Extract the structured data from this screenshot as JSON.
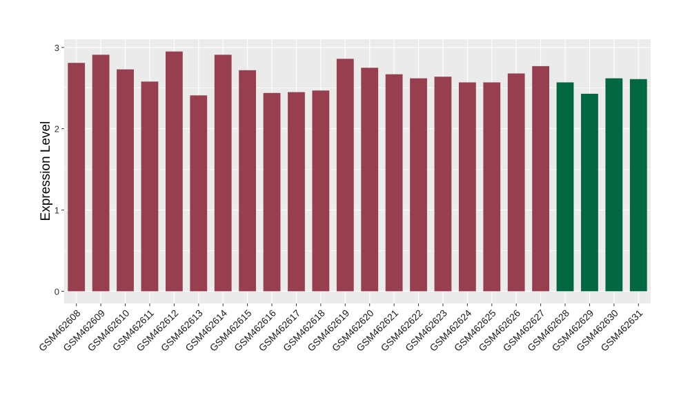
{
  "chart_data": {
    "type": "bar",
    "y_label": "Expression Level",
    "categories": [
      "GSM462608",
      "GSM462609",
      "GSM462610",
      "GSM462611",
      "GSM462612",
      "GSM462613",
      "GSM462614",
      "GSM462615",
      "GSM462616",
      "GSM462617",
      "GSM462618",
      "GSM462619",
      "GSM462620",
      "GSM462621",
      "GSM462622",
      "GSM462623",
      "GSM462624",
      "GSM462625",
      "GSM462626",
      "GSM462627",
      "GSM462628",
      "GSM462629",
      "GSM462630",
      "GSM462631"
    ],
    "values": [
      2.81,
      2.91,
      2.73,
      2.58,
      2.95,
      2.41,
      2.91,
      2.72,
      2.44,
      2.45,
      2.47,
      2.86,
      2.75,
      2.67,
      2.62,
      2.64,
      2.57,
      2.57,
      2.68,
      2.77,
      2.57,
      2.43,
      2.62,
      2.61
    ],
    "colors": [
      "#973f4f",
      "#973f4f",
      "#973f4f",
      "#973f4f",
      "#973f4f",
      "#973f4f",
      "#973f4f",
      "#973f4f",
      "#973f4f",
      "#973f4f",
      "#973f4f",
      "#973f4f",
      "#973f4f",
      "#973f4f",
      "#973f4f",
      "#973f4f",
      "#973f4f",
      "#973f4f",
      "#973f4f",
      "#973f4f",
      "#006741",
      "#006741",
      "#006741",
      "#006741"
    ],
    "ylim": [
      -0.15,
      3.1
    ],
    "yticks": [
      0,
      1,
      2,
      3
    ],
    "grid": true
  }
}
